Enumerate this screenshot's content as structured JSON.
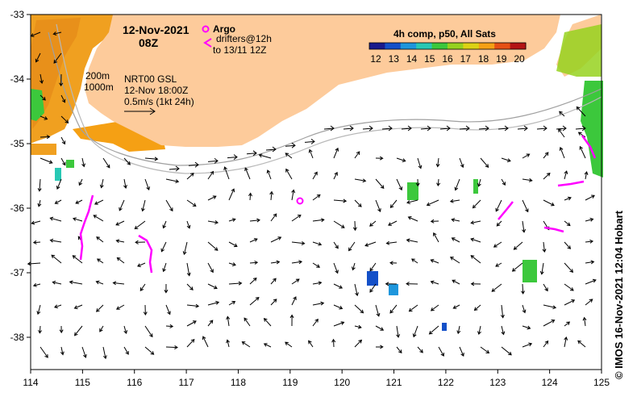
{
  "header": {
    "date": "12-Nov-2021",
    "time": "08Z"
  },
  "legend": {
    "argo_label": "Argo",
    "drifters_label": "drifters@12h",
    "drifters_range": "to 13/11 12Z",
    "argo_color": "#ff00ff",
    "drifter_color": "#ff00ff"
  },
  "colorbar": {
    "title": "4h comp, p50, All Sats",
    "ticks": [
      "12",
      "13",
      "14",
      "15",
      "16",
      "17",
      "18",
      "19",
      "20"
    ],
    "colors": [
      "#1a1a8c",
      "#1450c8",
      "#1e96dc",
      "#28c8b4",
      "#3cc83c",
      "#96d21e",
      "#dcd214",
      "#f5a014",
      "#e65014",
      "#b41414"
    ]
  },
  "annotations": {
    "isobath_200": "200m",
    "isobath_1000": "1000m",
    "product": "NRT00 GSL",
    "product_time": "12-Nov 18:00Z",
    "scale_label": "0.5m/s (1kt 24h)"
  },
  "credit": "© IMOS 16-Nov-2021 12:04 Hobart",
  "axes": {
    "x_ticks": [
      "114",
      "115",
      "116",
      "117",
      "118",
      "119",
      "120",
      "121",
      "122",
      "123",
      "124",
      "125"
    ],
    "y_ticks": [
      "-33",
      "-34",
      "-35",
      "-36",
      "-37",
      "-38"
    ]
  },
  "colors": {
    "land": "#fdcb9b",
    "shelf_warm": "#f0a020",
    "ocean": "#ffffff"
  }
}
